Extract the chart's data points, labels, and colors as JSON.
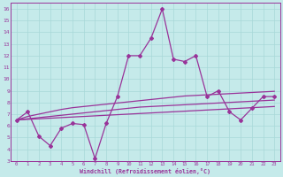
{
  "xlabel": "Windchill (Refroidissement éolien,°C)",
  "xlim": [
    -0.5,
    23.5
  ],
  "ylim": [
    3,
    16.5
  ],
  "xticks": [
    0,
    1,
    2,
    3,
    4,
    5,
    6,
    7,
    8,
    9,
    10,
    11,
    12,
    13,
    14,
    15,
    16,
    17,
    18,
    19,
    20,
    21,
    22,
    23
  ],
  "yticks": [
    3,
    4,
    5,
    6,
    7,
    8,
    9,
    10,
    11,
    12,
    13,
    14,
    15,
    16
  ],
  "bg_color": "#c5eaea",
  "line_color": "#993399",
  "grid_color": "#a8d8d8",
  "line1_x": [
    0,
    1,
    2,
    3,
    4,
    5,
    6,
    7,
    8,
    9,
    10,
    11,
    12,
    13,
    14,
    15,
    16,
    17,
    18,
    19,
    20,
    21,
    22,
    23
  ],
  "line1_y": [
    6.5,
    6.8,
    7.0,
    7.2,
    7.4,
    7.55,
    7.65,
    7.75,
    7.85,
    7.95,
    8.05,
    8.15,
    8.25,
    8.35,
    8.45,
    8.55,
    8.6,
    8.65,
    8.7,
    8.75,
    8.8,
    8.85,
    8.9,
    8.95
  ],
  "line2_x": [
    0,
    1,
    2,
    3,
    4,
    5,
    6,
    7,
    8,
    9,
    10,
    11,
    12,
    13,
    14,
    15,
    16,
    17,
    18,
    19,
    20,
    21,
    22,
    23
  ],
  "line2_y": [
    6.5,
    6.6,
    6.7,
    6.8,
    6.9,
    7.0,
    7.1,
    7.2,
    7.3,
    7.4,
    7.5,
    7.6,
    7.65,
    7.7,
    7.75,
    7.8,
    7.85,
    7.9,
    7.95,
    8.0,
    8.05,
    8.1,
    8.15,
    8.2
  ],
  "line3_x": [
    0,
    1,
    2,
    3,
    4,
    5,
    6,
    7,
    8,
    9,
    10,
    11,
    12,
    13,
    14,
    15,
    16,
    17,
    18,
    19,
    20,
    21,
    22,
    23
  ],
  "line3_y": [
    6.5,
    6.55,
    6.6,
    6.65,
    6.7,
    6.75,
    6.8,
    6.85,
    6.9,
    6.95,
    7.0,
    7.05,
    7.1,
    7.15,
    7.2,
    7.25,
    7.3,
    7.35,
    7.4,
    7.45,
    7.5,
    7.55,
    7.6,
    7.65
  ],
  "line4_x": [
    0,
    1,
    2,
    3,
    4,
    5,
    6,
    7,
    8,
    9,
    10,
    11,
    12,
    13,
    14,
    15,
    16,
    17,
    18,
    19,
    20,
    21,
    22,
    23
  ],
  "line4_y": [
    6.5,
    7.2,
    5.1,
    4.3,
    5.8,
    6.2,
    6.1,
    3.2,
    6.2,
    8.5,
    12.0,
    12.0,
    13.5,
    16.0,
    11.7,
    11.5,
    12.0,
    8.5,
    9.0,
    7.2,
    6.5,
    7.5,
    8.5,
    8.5
  ]
}
